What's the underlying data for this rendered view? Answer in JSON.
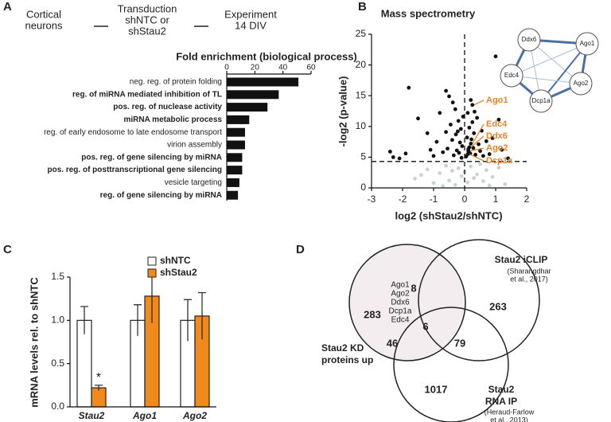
{
  "panels": [
    "A",
    "B",
    "C",
    "D"
  ],
  "workflow": {
    "steps": [
      [
        "Cortical",
        "neurons"
      ],
      [
        "Transduction",
        "shNTC or",
        "shStau2"
      ],
      [
        "Experiment",
        "14 DIV"
      ]
    ]
  },
  "chart_data": [
    {
      "type": "barh",
      "title": "Fold enrichment (biological process)",
      "categories": [
        "neg. reg. of protein folding",
        "reg. of miRNA mediated inhibition of TL",
        "pos. reg. of nuclease activity",
        "miRNA metabolic process",
        "reg. of early endosome to late endosome transport",
        "virion assembly",
        "pos. reg. of gene silencing by miRNA",
        "pos. reg. of posttranscriptional gene silencing",
        "vesicle targeting",
        "reg. of gene silencing by miRNA"
      ],
      "values": [
        51,
        37,
        29,
        16,
        13,
        13,
        11,
        11,
        9,
        8
      ],
      "bold": [
        false,
        true,
        true,
        true,
        false,
        false,
        true,
        true,
        false,
        true
      ],
      "color": "#111111",
      "xlim": [
        0,
        60
      ],
      "xticks": [
        0,
        20,
        40,
        60
      ],
      "axis_position": "top"
    },
    {
      "type": "scatter",
      "title": "Mass spectrometry",
      "xlabel": "log2 (shStau2/shNTC)",
      "ylabel": "-log2 (p-value)",
      "series": [
        {
          "color": "#111111",
          "x": [
            -2.4,
            -2.3,
            -2.1,
            -1.9,
            -1.8,
            -1.5,
            -1.2,
            -1.1,
            -1.0,
            -0.9,
            -0.8,
            -0.7,
            -0.6,
            -0.55,
            -0.5,
            -0.45,
            -0.4,
            -0.35,
            -0.3,
            -0.28,
            -0.25,
            -0.2,
            -0.18,
            -0.15,
            -0.12,
            -0.1,
            -0.08,
            -0.05,
            0.05,
            0.08,
            0.1,
            0.12,
            0.15,
            0.18,
            0.2,
            0.22,
            0.25,
            0.28,
            0.3,
            0.35,
            0.4,
            0.45,
            0.5,
            0.55,
            0.6,
            0.7,
            0.8,
            0.9,
            1.0,
            1.1,
            1.2,
            1.4,
            -0.38,
            -0.22,
            0.32,
            -0.6
          ],
          "values": [
            5.9,
            5.0,
            4.8,
            5.6,
            16.3,
            11.3,
            8.9,
            6.2,
            5.2,
            7.5,
            12.2,
            5.8,
            9.1,
            6.4,
            14.9,
            10.3,
            7.8,
            5.3,
            12.8,
            8.7,
            6.1,
            10.9,
            5.7,
            7.4,
            9.6,
            4.9,
            6.8,
            11.6,
            5.1,
            8.2,
            12.2,
            6.3,
            9.8,
            5.6,
            14.3,
            7.9,
            10.7,
            6.5,
            8.9,
            5.4,
            11.4,
            7.1,
            6.0,
            9.3,
            5.2,
            7.6,
            5.5,
            8.1,
            21.4,
            11.1,
            6.2,
            4.8,
            13.9,
            9.2,
            12.4,
            15.8
          ]
        },
        {
          "color": "#c9d3d6",
          "x": [
            -1.6,
            -1.2,
            -1.0,
            -0.8,
            -0.6,
            -0.5,
            -0.4,
            -0.3,
            -0.2,
            -0.1,
            0,
            0.1,
            0.2,
            0.3,
            0.4,
            0.5,
            0.6,
            0.7,
            0.9,
            1.1,
            1.3,
            -0.7,
            0.8,
            -1.4
          ],
          "values": [
            1.5,
            3.0,
            0.8,
            2.4,
            3.6,
            1.2,
            2.8,
            0.5,
            3.2,
            1.9,
            2.6,
            0.9,
            3.5,
            1.6,
            2.2,
            3.9,
            1.1,
            2.9,
            1.8,
            3.3,
            0.6,
            0.3,
            0.4,
            2.1
          ]
        }
      ],
      "xlim": [
        -3,
        2
      ],
      "xticks": [
        -3,
        -2,
        -1,
        0,
        1,
        2
      ],
      "ylim": [
        0,
        25
      ],
      "yticks": [
        0,
        5,
        10,
        15,
        20,
        25
      ],
      "threshold_x": 0,
      "threshold_y": 4.3,
      "annotation_color": "#e8822a",
      "annotations": [
        {
          "text": "Ago1",
          "x": 0.25,
          "y": 13.5
        },
        {
          "text": "Edc4",
          "x": 0.2,
          "y": 7.2
        },
        {
          "text": "Ddx6",
          "x": 0.15,
          "y": 6.6
        },
        {
          "text": "Ago2",
          "x": 0.12,
          "y": 6.0
        },
        {
          "text": "Dcp1a",
          "x": 0.1,
          "y": 5.5
        }
      ]
    },
    {
      "type": "bar",
      "ylabel": "mRNA levels rel. to shNTC",
      "categories": [
        "Stau2",
        "Ago1",
        "Ago2"
      ],
      "series": [
        {
          "name": "shNTC",
          "color": "#ffffff",
          "values": [
            1.0,
            1.0,
            1.0
          ],
          "errors": [
            0.16,
            0.18,
            0.24
          ]
        },
        {
          "name": "shStau2",
          "color": "#f08a1c",
          "values": [
            0.22,
            1.28,
            1.05
          ],
          "errors": [
            0.03,
            0.31,
            0.27
          ]
        }
      ],
      "significance_labels": [
        "*",
        null,
        null
      ],
      "ylim": [
        0,
        1.5
      ],
      "yticks": [
        {
          "value": 0,
          "label": "0.0"
        },
        {
          "value": 0.5,
          "label": "0.5"
        },
        {
          "value": 1,
          "label": "1.0"
        },
        {
          "value": 1.5,
          "label": "1.5"
        }
      ]
    }
  ],
  "network": {
    "nodes": [
      "Ddx6",
      "Ago1",
      "Edc4",
      "Ago2",
      "Dcp1a"
    ]
  },
  "venn": {
    "sets": [
      {
        "label": [
          "Stau2 KD",
          "proteins up"
        ]
      },
      {
        "label": [
          "Stau2 iCLIP"
        ],
        "citation": [
          "(Sharangdhar",
          "et al., 2017)"
        ]
      },
      {
        "label": [
          "Stau2",
          "RNA IP"
        ],
        "citation": [
          "(Heraud-Farlow",
          "et al., 2013)"
        ]
      }
    ],
    "regions": [
      283,
      8,
      263,
      6,
      46,
      79,
      1017
    ],
    "shared_proteins": [
      "Ago1",
      "Ago2",
      "Ddx6",
      "Dcp1a",
      "Edc4"
    ]
  }
}
